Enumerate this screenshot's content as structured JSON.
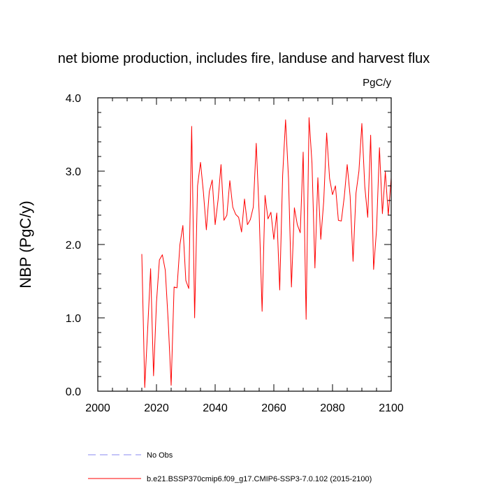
{
  "chart_data": {
    "type": "line",
    "title": "net biome production, includes fire, landuse and harvest flux",
    "units": "PgC/y",
    "ylabel": "NBP  (PgC/y)",
    "xlabel": "",
    "xlim": [
      2000,
      2100
    ],
    "ylim": [
      0.0,
      4.0
    ],
    "x_ticks": [
      2000,
      2020,
      2040,
      2060,
      2080,
      2100
    ],
    "x_tick_labels": [
      "2000",
      "2020",
      "2040",
      "2060",
      "2080",
      "2100"
    ],
    "y_ticks": [
      0.0,
      1.0,
      2.0,
      3.0,
      4.0
    ],
    "y_tick_labels": [
      "0.0",
      "1.0",
      "2.0",
      "3.0",
      "4.0"
    ],
    "grid": false,
    "legend_position": "bottom",
    "legend": [
      {
        "label": "No Obs",
        "color": "#8a8af0",
        "style": "dashed"
      },
      {
        "label": "b.e21.BSSP370cmip6.f09_g17.CMIP6-SSP3-7.0.102 (2015-2100)",
        "color": "#ff0000",
        "style": "solid"
      }
    ],
    "series": [
      {
        "name": "b.e21.BSSP370cmip6.f09_g17.CMIP6-SSP3-7.0.102 (2015-2100)",
        "color": "#ff0000",
        "x": [
          2015,
          2016,
          2017,
          2018,
          2019,
          2020,
          2021,
          2022,
          2023,
          2024,
          2025,
          2026,
          2027,
          2028,
          2029,
          2030,
          2031,
          2032,
          2033,
          2034,
          2035,
          2036,
          2037,
          2038,
          2039,
          2040,
          2041,
          2042,
          2043,
          2044,
          2045,
          2046,
          2047,
          2048,
          2049,
          2050,
          2051,
          2052,
          2053,
          2054,
          2055,
          2056,
          2057,
          2058,
          2059,
          2060,
          2061,
          2062,
          2063,
          2064,
          2065,
          2066,
          2067,
          2068,
          2069,
          2070,
          2071,
          2072,
          2073,
          2074,
          2075,
          2076,
          2077,
          2078,
          2079,
          2080,
          2081,
          2082,
          2083,
          2084,
          2085,
          2086,
          2087,
          2088,
          2089,
          2090,
          2091,
          2092,
          2093,
          2094,
          2095,
          2096,
          2097,
          2098,
          2099,
          2100
        ],
        "y": [
          1.87,
          0.05,
          0.85,
          1.67,
          0.21,
          1.21,
          1.79,
          1.86,
          1.65,
          0.95,
          0.08,
          1.42,
          1.41,
          2.0,
          2.26,
          1.51,
          1.4,
          3.61,
          1.0,
          2.8,
          3.12,
          2.71,
          2.2,
          2.72,
          2.88,
          2.27,
          2.61,
          3.09,
          2.33,
          2.4,
          2.87,
          2.51,
          2.41,
          2.37,
          2.17,
          2.62,
          2.27,
          2.34,
          2.51,
          3.38,
          2.42,
          1.09,
          2.67,
          2.35,
          2.44,
          2.07,
          2.43,
          1.38,
          2.94,
          3.7,
          2.9,
          1.42,
          2.5,
          2.27,
          2.16,
          3.26,
          0.98,
          3.73,
          3.11,
          1.68,
          2.91,
          2.07,
          2.59,
          3.52,
          2.9,
          2.68,
          2.8,
          2.33,
          2.32,
          2.65,
          3.09,
          2.66,
          1.77,
          2.7,
          3.0,
          3.65,
          2.79,
          2.37,
          3.49,
          1.66,
          2.2,
          3.32,
          2.42,
          2.99,
          2.4,
          2.91
        ]
      }
    ]
  }
}
